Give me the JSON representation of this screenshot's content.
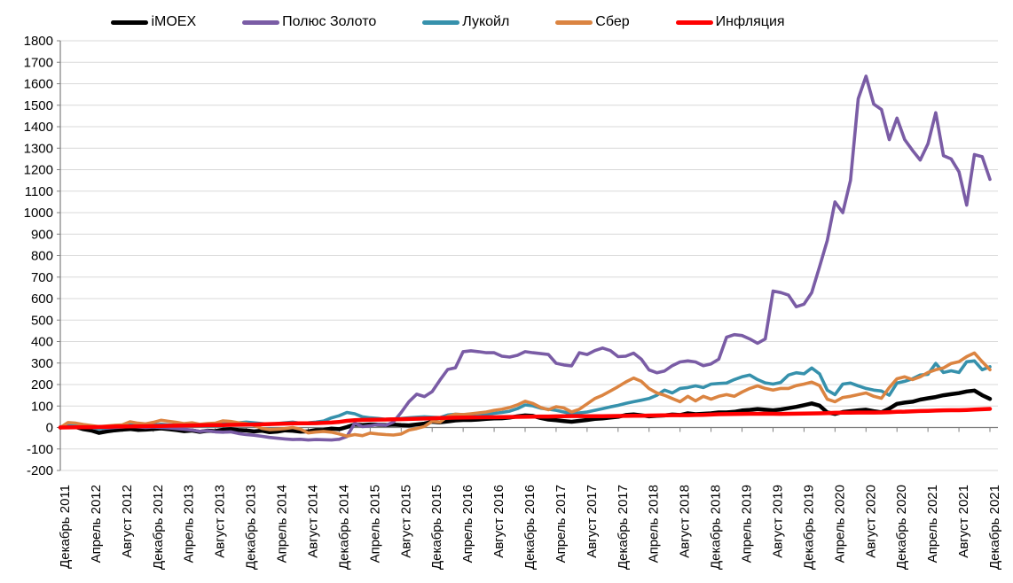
{
  "page": {
    "background": "#ffffff",
    "grid_color": "#d9d9d9",
    "axis_color": "#7f7f7f",
    "label_color": "#000000"
  },
  "chart_data": {
    "type": "line",
    "title": "",
    "xlabel": "",
    "ylabel": "",
    "legend_position": "top",
    "grid": "horizontal",
    "ylim": [
      -200,
      1800
    ],
    "y_ticks": [
      1800,
      1700,
      1600,
      1500,
      1400,
      1300,
      1200,
      1100,
      1000,
      900,
      800,
      700,
      600,
      500,
      400,
      300,
      200,
      100,
      0,
      -100,
      -200
    ],
    "x_tick_every_n_points": 4,
    "x_tick_labels": [
      "Декабрь 2011",
      "Апрель 2012",
      "Август 2012",
      "Декабрь 2012",
      "Апрель 2013",
      "Август 2013",
      "Декабрь 2013",
      "Апрель 2014",
      "Август 2014",
      "Декабрь 2014",
      "Апрель 2015",
      "Август 2015",
      "Декабрь 2015",
      "Апрель 2016",
      "Август 2016",
      "Декабрь 2016",
      "Апрель 2017",
      "Август 2017",
      "Декабрь 2017",
      "Апрель 2018",
      "Август 2018",
      "Декабрь 2018",
      "Апрель 2019",
      "Август 2019",
      "Декабрь 2019",
      "Апрель 2020",
      "Август 2020",
      "Декабрь 2020",
      "Апрель 2021",
      "Август 2021",
      "Декабрь 2021"
    ],
    "x_unit": "monthly points from Декабрь 2011 to Декабрь 2021",
    "series": [
      {
        "name": "iMOEX",
        "color": "#000000",
        "values": [
          0,
          8,
          2,
          -8,
          -14,
          -25,
          -18,
          -13,
          -10,
          -7,
          -11,
          -10,
          -7,
          -4,
          -8,
          -12,
          -17,
          -14,
          -20,
          -15,
          -17,
          -10,
          -8,
          -12,
          -14,
          -18,
          -15,
          -22,
          -19,
          -13,
          -15,
          -19,
          -18,
          -12,
          -11,
          -5,
          -8,
          2,
          14,
          11,
          14,
          13,
          11,
          13,
          11,
          10,
          14,
          18,
          27,
          24,
          28,
          33,
          35,
          35,
          37,
          40,
          42,
          43,
          46,
          52,
          56,
          54,
          44,
          37,
          34,
          30,
          27,
          31,
          35,
          40,
          42,
          46,
          50,
          58,
          61,
          57,
          52,
          55,
          56,
          60,
          58,
          66,
          62,
          64,
          66,
          70,
          70,
          73,
          79,
          82,
          86,
          83,
          80,
          84,
          90,
          96,
          104,
          112,
          102,
          70,
          63,
          72,
          76,
          80,
          83,
          76,
          71,
          88,
          110,
          116,
          120,
          130,
          136,
          142,
          150,
          155,
          160,
          168,
          172,
          150,
          133
        ]
      },
      {
        "name": "Полюс Золото",
        "color": "#7a5ca5",
        "values": [
          0,
          18,
          10,
          4,
          0,
          -6,
          -3,
          0,
          2,
          5,
          3,
          0,
          2,
          0,
          -2,
          -5,
          -8,
          -12,
          -18,
          -15,
          -20,
          -22,
          -20,
          -28,
          -33,
          -36,
          -41,
          -46,
          -50,
          -53,
          -56,
          -55,
          -58,
          -56,
          -57,
          -58,
          -55,
          -42,
          20,
          4,
          8,
          14,
          10,
          25,
          70,
          120,
          155,
          144,
          167,
          220,
          270,
          278,
          353,
          357,
          353,
          348,
          348,
          332,
          328,
          336,
          353,
          348,
          344,
          340,
          299,
          291,
          287,
          348,
          340,
          358,
          370,
          358,
          330,
          332,
          346,
          318,
          268,
          255,
          263,
          288,
          305,
          310,
          305,
          288,
          296,
          318,
          420,
          432,
          428,
          412,
          392,
          412,
          635,
          628,
          616,
          562,
          574,
          628,
          748,
          870,
          1050,
          1000,
          1150,
          1530,
          1635,
          1505,
          1480,
          1340,
          1440,
          1340,
          1290,
          1245,
          1320,
          1465,
          1265,
          1250,
          1190,
          1035,
          1270,
          1260,
          1155
        ]
      },
      {
        "name": "Лукойл",
        "color": "#3691ac",
        "values": [
          0,
          5,
          8,
          3,
          0,
          -6,
          0,
          4,
          8,
          12,
          10,
          8,
          12,
          15,
          12,
          10,
          8,
          12,
          10,
          14,
          17,
          16,
          20,
          22,
          25,
          22,
          18,
          15,
          18,
          22,
          25,
          20,
          22,
          25,
          30,
          45,
          55,
          70,
          64,
          50,
          45,
          42,
          38,
          40,
          42,
          45,
          48,
          50,
          48,
          46,
          58,
          62,
          60,
          62,
          64,
          62,
          66,
          70,
          76,
          88,
          105,
          101,
          90,
          85,
          80,
          72,
          64,
          68,
          72,
          80,
          88,
          96,
          103,
          112,
          120,
          127,
          135,
          150,
          174,
          161,
          182,
          186,
          194,
          186,
          202,
          205,
          207,
          223,
          236,
          244,
          223,
          208,
          202,
          210,
          244,
          255,
          250,
          277,
          250,
          174,
          153,
          202,
          207,
          194,
          182,
          174,
          170,
          150,
          207,
          215,
          227,
          244,
          248,
          298,
          256,
          264,
          256,
          306,
          310,
          269,
          283
        ]
      },
      {
        "name": "Сбер",
        "color": "#db8441",
        "values": [
          0,
          23,
          20,
          14,
          9,
          4,
          7,
          10,
          12,
          27,
          20,
          17,
          24,
          34,
          29,
          24,
          18,
          22,
          15,
          18,
          20,
          31,
          28,
          22,
          18,
          10,
          -4,
          -10,
          -8,
          -5,
          0,
          -8,
          -25,
          -21,
          -18,
          -22,
          -30,
          -40,
          -33,
          -38,
          -26,
          -30,
          -33,
          -35,
          -30,
          -12,
          -5,
          5,
          29,
          25,
          52,
          62,
          60,
          64,
          68,
          72,
          80,
          85,
          93,
          105,
          122,
          112,
          93,
          83,
          97,
          91,
          72,
          85,
          110,
          135,
          150,
          170,
          190,
          212,
          230,
          215,
          181,
          161,
          150,
          135,
          120,
          145,
          124,
          145,
          132,
          145,
          153,
          145,
          165,
          182,
          194,
          182,
          174,
          182,
          182,
          195,
          202,
          211,
          195,
          132,
          120,
          140,
          145,
          153,
          161,
          145,
          136,
          186,
          227,
          236,
          223,
          236,
          256,
          269,
          277,
          298,
          306,
          330,
          347,
          306,
          269
        ]
      },
      {
        "name": "Инфляция",
        "color": "#ff0000",
        "values": [
          0,
          0.5,
          0.9,
          1.5,
          1.8,
          2.4,
          3.3,
          4.5,
          4.6,
          5.2,
          5.7,
          6,
          6.6,
          7.6,
          8.3,
          8.7,
          9.2,
          9.9,
          10.3,
          11.2,
          11.3,
          11.6,
          12.3,
          12.6,
          13.4,
          14.1,
          14.9,
          16,
          17,
          18.1,
          18.8,
          19.3,
          19.6,
          20.4,
          21.4,
          22.9,
          26,
          31,
          33.8,
          35.4,
          36.1,
          36.6,
          37.3,
          38.5,
          38.9,
          39.7,
          40.7,
          41.8,
          42.7,
          44.1,
          45,
          45.6,
          46.3,
          46.9,
          47.4,
          48,
          48,
          48.3,
          48.9,
          49.3,
          49.9,
          50.8,
          51.1,
          51.3,
          51.8,
          52.4,
          53.3,
          53.3,
          52.6,
          52.4,
          52.7,
          53.1,
          53.7,
          54.1,
          54.4,
          54.9,
          55.5,
          56.1,
          56.9,
          57.3,
          57.3,
          57.5,
          58.1,
          58.9,
          60.1,
          61.7,
          62.4,
          62.9,
          63.4,
          63.9,
          63.9,
          64.2,
          63.8,
          63.6,
          63.8,
          64.3,
          64.9,
          65.6,
          66.1,
          67,
          68.4,
          68.8,
          69.2,
          69.8,
          69.7,
          69.6,
          70.3,
          71.5,
          72.9,
          74,
          75.4,
          76.5,
          77.5,
          78.7,
          79.9,
          80.4,
          80.6,
          81.6,
          83.5,
          85.1,
          86.5
        ]
      }
    ]
  }
}
